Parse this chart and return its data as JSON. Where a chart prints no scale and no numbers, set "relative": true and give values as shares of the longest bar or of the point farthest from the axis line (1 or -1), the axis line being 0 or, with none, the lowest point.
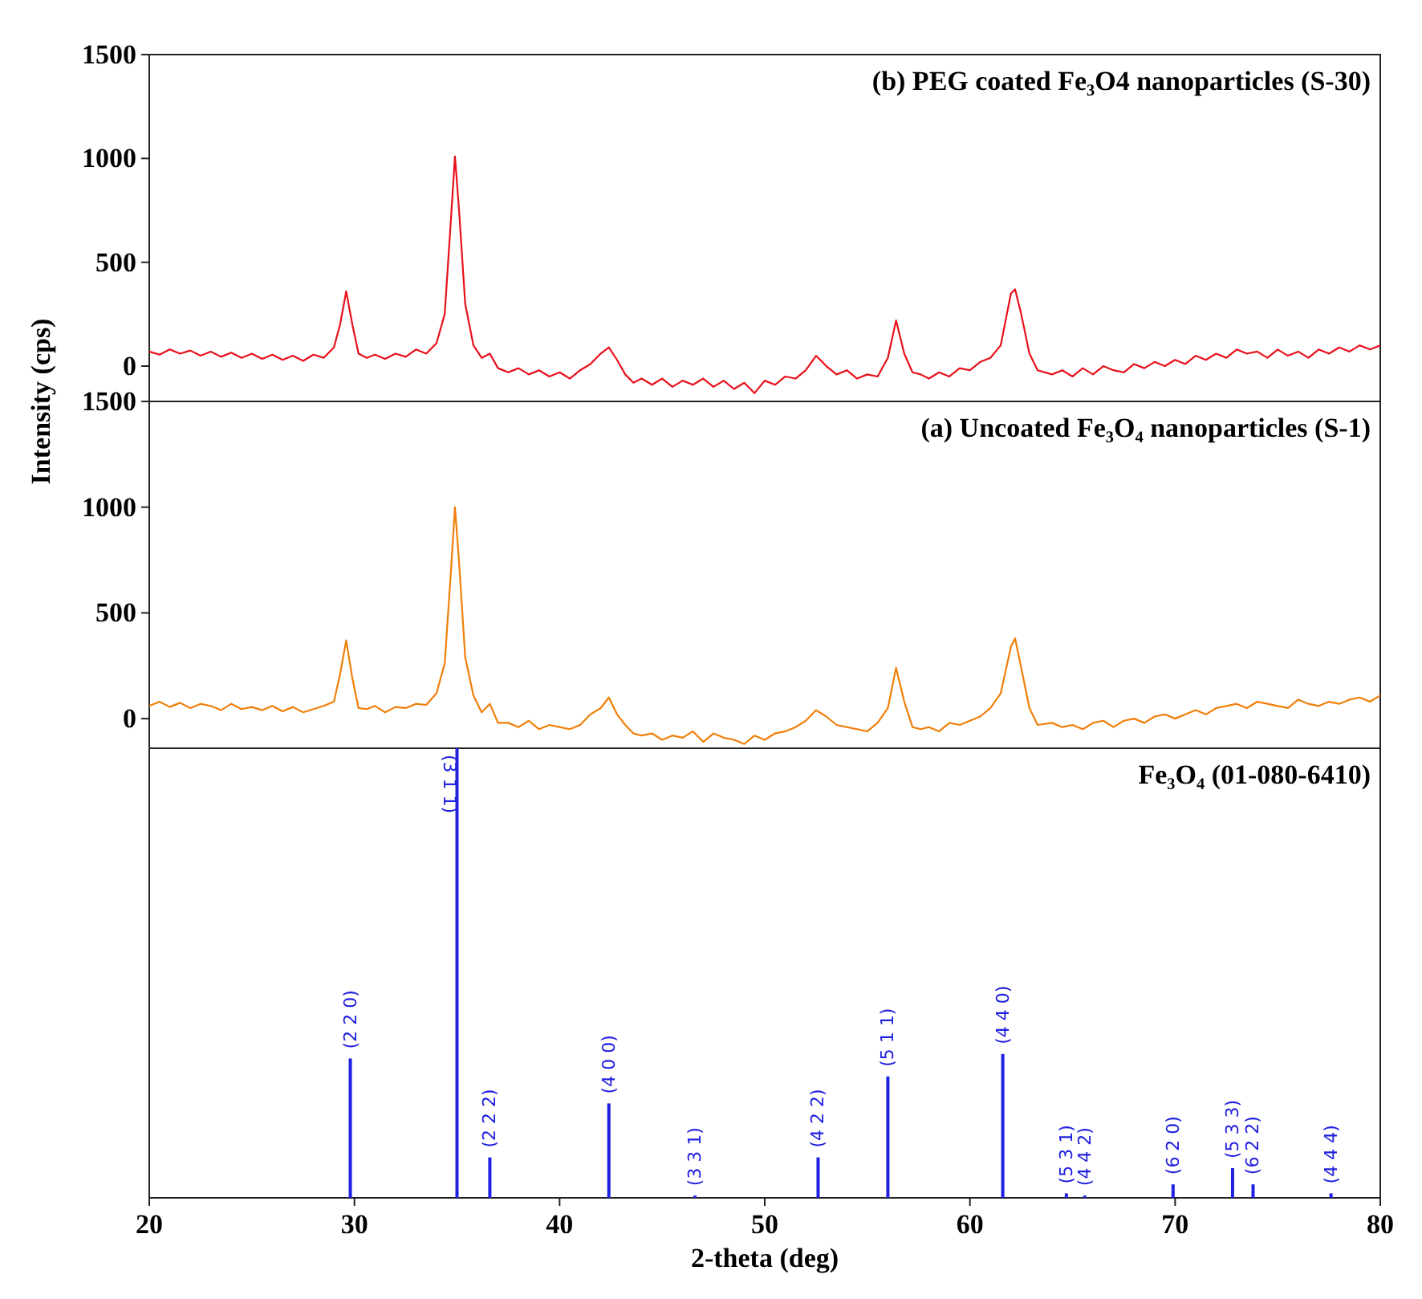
{
  "chart_data": [
    {
      "type": "line",
      "title": "(b) PEG coated Fe₃O4 nanoparticles (S-30)",
      "ylabel": "Intensity (cps)",
      "xlim": [
        20,
        80
      ],
      "ylim": [
        -170,
        1500
      ],
      "yticks": [
        0,
        500,
        1000,
        1500
      ],
      "tick_labels": "y",
      "series": [
        {
          "color": "#e8101a",
          "x": [
            20,
            20.5,
            21,
            21.5,
            22,
            22.5,
            23,
            23.5,
            24,
            24.5,
            25,
            25.5,
            26,
            26.5,
            27,
            27.5,
            28,
            28.5,
            29,
            29.3,
            29.6,
            29.9,
            30.2,
            30.6,
            31,
            31.5,
            32,
            32.5,
            33,
            33.5,
            34,
            34.4,
            34.7,
            34.9,
            35.1,
            35.4,
            35.8,
            36.2,
            36.6,
            37,
            37.5,
            38,
            38.5,
            39,
            39.5,
            40,
            40.5,
            41,
            41.5,
            42,
            42.4,
            42.8,
            43.2,
            43.6,
            44,
            44.5,
            45,
            45.5,
            46,
            46.5,
            47,
            47.5,
            48,
            48.5,
            49,
            49.5,
            50,
            50.5,
            51,
            51.5,
            52,
            52.5,
            53,
            53.5,
            54,
            54.5,
            55,
            55.5,
            56,
            56.4,
            56.8,
            57.2,
            57.6,
            58,
            58.5,
            59,
            59.5,
            60,
            60.5,
            61,
            61.5,
            62,
            62.2,
            62.5,
            62.9,
            63.3,
            64,
            64.5,
            65,
            65.5,
            66,
            66.5,
            67,
            67.5,
            68,
            68.5,
            69,
            69.5,
            70,
            70.5,
            71,
            71.5,
            72,
            72.5,
            73,
            73.5,
            74,
            74.5,
            75,
            75.5,
            76,
            76.5,
            77,
            77.5,
            78,
            78.5,
            79,
            79.5,
            80
          ],
          "values": [
            70,
            55,
            80,
            60,
            75,
            50,
            70,
            45,
            65,
            40,
            60,
            35,
            55,
            30,
            50,
            25,
            55,
            40,
            90,
            200,
            360,
            200,
            60,
            40,
            55,
            35,
            60,
            45,
            80,
            60,
            110,
            250,
            700,
            1010,
            750,
            300,
            100,
            40,
            60,
            -10,
            -30,
            -10,
            -40,
            -20,
            -50,
            -30,
            -60,
            -20,
            10,
            60,
            90,
            30,
            -40,
            -80,
            -60,
            -90,
            -60,
            -100,
            -70,
            -90,
            -60,
            -100,
            -70,
            -110,
            -80,
            -130,
            -70,
            -90,
            -50,
            -60,
            -20,
            50,
            0,
            -40,
            -20,
            -60,
            -40,
            -50,
            40,
            220,
            60,
            -30,
            -40,
            -60,
            -30,
            -50,
            -10,
            -20,
            20,
            40,
            100,
            350,
            370,
            250,
            60,
            -20,
            -40,
            -20,
            -50,
            -10,
            -40,
            0,
            -20,
            -30,
            10,
            -10,
            20,
            0,
            30,
            10,
            50,
            30,
            60,
            40,
            80,
            60,
            70,
            40,
            80,
            50,
            70,
            40,
            80,
            60,
            90,
            70,
            100,
            80,
            100
          ]
        }
      ]
    },
    {
      "type": "line",
      "title": "(a) Uncoated Fe₃O₄ nanoparticles (S-1)",
      "xlim": [
        20,
        80
      ],
      "ylim": [
        -140,
        1500
      ],
      "yticks": [
        0,
        500,
        1000,
        1500
      ],
      "tick_labels": "y",
      "series": [
        {
          "color": "#f07f0a",
          "x": [
            20,
            20.5,
            21,
            21.5,
            22,
            22.5,
            23,
            23.5,
            24,
            24.5,
            25,
            25.5,
            26,
            26.5,
            27,
            27.5,
            28,
            28.5,
            29,
            29.3,
            29.6,
            29.9,
            30.2,
            30.6,
            31,
            31.5,
            32,
            32.5,
            33,
            33.5,
            34,
            34.4,
            34.7,
            34.9,
            35.1,
            35.4,
            35.8,
            36.2,
            36.6,
            37,
            37.5,
            38,
            38.5,
            39,
            39.5,
            40,
            40.5,
            41,
            41.5,
            42,
            42.4,
            42.8,
            43.2,
            43.6,
            44,
            44.5,
            45,
            45.5,
            46,
            46.5,
            47,
            47.5,
            48,
            48.5,
            49,
            49.5,
            50,
            50.5,
            51,
            51.5,
            52,
            52.5,
            53,
            53.5,
            54,
            54.5,
            55,
            55.5,
            56,
            56.4,
            56.8,
            57.2,
            57.6,
            58,
            58.5,
            59,
            59.5,
            60,
            60.5,
            61,
            61.5,
            62,
            62.2,
            62.5,
            62.9,
            63.3,
            64,
            64.5,
            65,
            65.5,
            66,
            66.5,
            67,
            67.5,
            68,
            68.5,
            69,
            69.5,
            70,
            70.5,
            71,
            71.5,
            72,
            72.5,
            73,
            73.5,
            74,
            74.5,
            75,
            75.5,
            76,
            76.5,
            77,
            77.5,
            78,
            78.5,
            79,
            79.5,
            80
          ],
          "values": [
            60,
            80,
            55,
            75,
            50,
            70,
            60,
            40,
            70,
            45,
            55,
            40,
            60,
            35,
            55,
            30,
            45,
            60,
            80,
            210,
            370,
            190,
            50,
            45,
            60,
            30,
            55,
            50,
            70,
            65,
            120,
            260,
            690,
            1000,
            740,
            290,
            110,
            30,
            70,
            -20,
            -20,
            -40,
            -10,
            -50,
            -30,
            -40,
            -50,
            -30,
            20,
            50,
            100,
            20,
            -30,
            -70,
            -80,
            -70,
            -100,
            -80,
            -90,
            -60,
            -110,
            -70,
            -90,
            -100,
            -120,
            -80,
            -100,
            -70,
            -60,
            -40,
            -10,
            40,
            10,
            -30,
            -40,
            -50,
            -60,
            -20,
            50,
            240,
            80,
            -40,
            -50,
            -40,
            -60,
            -20,
            -30,
            -10,
            10,
            50,
            120,
            340,
            380,
            240,
            50,
            -30,
            -20,
            -40,
            -30,
            -50,
            -20,
            -10,
            -40,
            -10,
            0,
            -20,
            10,
            20,
            0,
            20,
            40,
            20,
            50,
            60,
            70,
            50,
            80,
            70,
            60,
            50,
            90,
            70,
            60,
            80,
            70,
            90,
            100,
            80,
            110
          ]
        }
      ]
    },
    {
      "type": "bar",
      "title": "Fe₃O₄ (01-080-6410)",
      "xlabel": "2-theta (deg)",
      "relative": true,
      "xlim": [
        20,
        80
      ],
      "xticks": [
        20,
        30,
        40,
        50,
        60,
        70,
        80
      ],
      "tick_labels": "x",
      "x": [
        29.8,
        35.0,
        36.6,
        42.4,
        46.6,
        52.6,
        56.0,
        61.6,
        64.7,
        65.6,
        69.9,
        72.8,
        73.8,
        77.6
      ],
      "values": [
        0.31,
        1,
        0.09,
        0.21,
        0.005,
        0.09,
        0.27,
        0.32,
        0.01,
        0.005,
        0.03,
        0.066,
        0.03,
        0.01
      ],
      "color": "#2020e0",
      "annotations": [
        {
          "text": "(2 2 0)",
          "x": 29.8,
          "y": 0.31
        },
        {
          "text": "(3 1 1)",
          "x": 35.0,
          "y": 1
        },
        {
          "text": "(2 2 2)",
          "x": 36.6,
          "y": 0.09
        },
        {
          "text": "(4 0 0)",
          "x": 42.4,
          "y": 0.21
        },
        {
          "text": "(3 3 1)",
          "x": 46.6,
          "y": 0.005
        },
        {
          "text": "(4 2 2)",
          "x": 52.6,
          "y": 0.09
        },
        {
          "text": "(5 1 1)",
          "x": 56.0,
          "y": 0.27
        },
        {
          "text": "(4 4 0)",
          "x": 61.6,
          "y": 0.32
        },
        {
          "text": "(5 3 1)",
          "x": 64.7,
          "y": 0.01
        },
        {
          "text": "(4 4 2)",
          "x": 65.6,
          "y": 0.005
        },
        {
          "text": "(6 2 0)",
          "x": 69.9,
          "y": 0.03
        },
        {
          "text": "(5 3 3)",
          "x": 72.8,
          "y": 0.066
        },
        {
          "text": "(6 2 2)",
          "x": 73.8,
          "y": 0.03
        },
        {
          "text": "(4 4 4)",
          "x": 77.6,
          "y": 0.01
        }
      ]
    }
  ]
}
